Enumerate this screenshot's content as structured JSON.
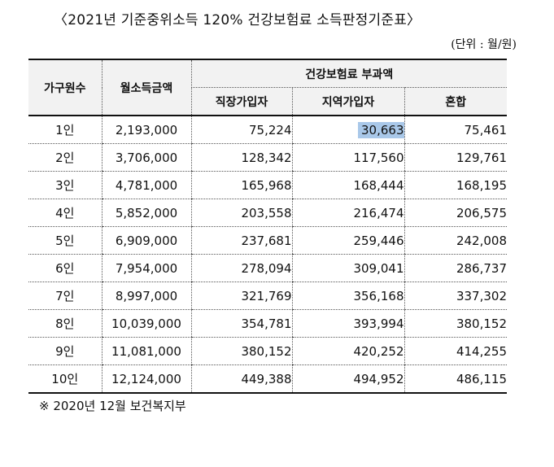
{
  "title": "〈2021년 기준중위소득 120% 건강보험료 소득판정기준표〉",
  "unit": "(단위 : 월/원)",
  "headers": {
    "household": "가구원수",
    "income": "월소득금액",
    "premium_group": "건강보험료 부과액",
    "employee": "직장가입자",
    "regional": "지역가입자",
    "mixed": "혼합"
  },
  "rows": [
    {
      "household": "1인",
      "income": "2,193,000",
      "employee": "75,224",
      "regional": "30,663",
      "mixed": "75,461"
    },
    {
      "household": "2인",
      "income": "3,706,000",
      "employee": "128,342",
      "regional": "117,560",
      "mixed": "129,761"
    },
    {
      "household": "3인",
      "income": "4,781,000",
      "employee": "165,968",
      "regional": "168,444",
      "mixed": "168,195"
    },
    {
      "household": "4인",
      "income": "5,852,000",
      "employee": "203,558",
      "regional": "216,474",
      "mixed": "206,575"
    },
    {
      "household": "5인",
      "income": "6,909,000",
      "employee": "237,681",
      "regional": "259,446",
      "mixed": "242,008"
    },
    {
      "household": "6인",
      "income": "7,954,000",
      "employee": "278,094",
      "regional": "309,041",
      "mixed": "286,737"
    },
    {
      "household": "7인",
      "income": "8,997,000",
      "employee": "321,769",
      "regional": "356,168",
      "mixed": "337,302"
    },
    {
      "household": "8인",
      "income": "10,039,000",
      "employee": "354,781",
      "regional": "393,994",
      "mixed": "380,152"
    },
    {
      "household": "9인",
      "income": "11,081,000",
      "employee": "380,152",
      "regional": "420,252",
      "mixed": "414,255"
    },
    {
      "household": "10인",
      "income": "12,124,000",
      "employee": "449,388",
      "regional": "494,952",
      "mixed": "486,115"
    }
  ],
  "highlight_color": "#a9c8e9",
  "footer": "※ 2020년 12월 보건복지부"
}
